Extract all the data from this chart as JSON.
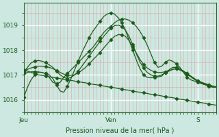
{
  "bg_color": "#cce8e0",
  "plot_bg_color": "#cce8e0",
  "grid_color_major": "#ffffff",
  "grid_color_minor": "#e8b8b8",
  "line_color": "#1a5c1a",
  "marker_color": "#1a5c1a",
  "xlabel": "Pression niveau de la mer( hPa )",
  "ylim": [
    1015.5,
    1019.9
  ],
  "yticks": [
    1016,
    1017,
    1018,
    1019
  ],
  "xtick_labels": [
    "Jeu",
    "Ven",
    "S"
  ],
  "xtick_positions": [
    0,
    24,
    48
  ],
  "total_hours": 54,
  "series": [
    [
      1016.1,
      1016.5,
      1016.8,
      1017.0,
      1017.1,
      1017.1,
      1017.05,
      1016.9,
      1016.7,
      1016.65,
      1016.7,
      1016.9,
      1017.05,
      1017.2,
      1017.35,
      1017.5,
      1017.65,
      1017.8,
      1017.95,
      1018.1,
      1018.3,
      1018.5,
      1018.7,
      1018.85,
      1018.95,
      1019.1,
      1019.2,
      1019.25,
      1019.25,
      1019.2,
      1019.1,
      1018.95,
      1018.75,
      1018.5,
      1018.2,
      1017.85,
      1017.5,
      1017.3,
      1017.35,
      1017.5,
      1017.6,
      1017.55,
      1017.45,
      1017.3,
      1017.1,
      1016.9,
      1016.8,
      1016.75,
      1016.7,
      1016.65,
      1016.6,
      1016.55,
      1016.5,
      1016.5
    ],
    [
      1017.05,
      1017.1,
      1017.12,
      1017.13,
      1017.12,
      1017.1,
      1017.05,
      1017.0,
      1016.85,
      1016.6,
      1016.35,
      1016.3,
      1016.55,
      1016.85,
      1017.2,
      1017.55,
      1017.9,
      1018.2,
      1018.5,
      1018.75,
      1018.95,
      1019.15,
      1019.35,
      1019.45,
      1019.5,
      1019.45,
      1019.3,
      1019.1,
      1018.8,
      1018.4,
      1018.0,
      1017.6,
      1017.25,
      1017.0,
      1016.9,
      1016.88,
      1016.9,
      1016.92,
      1016.95,
      1017.1,
      1017.2,
      1017.3,
      1017.3,
      1017.25,
      1017.15,
      1017.05,
      1016.95,
      1016.85,
      1016.75,
      1016.7,
      1016.65,
      1016.6,
      1016.55,
      1016.5
    ],
    [
      1017.1,
      1017.3,
      1017.48,
      1017.55,
      1017.58,
      1017.55,
      1017.5,
      1017.4,
      1017.3,
      1017.15,
      1017.0,
      1016.9,
      1016.85,
      1016.9,
      1017.0,
      1017.15,
      1017.35,
      1017.55,
      1017.75,
      1017.95,
      1018.15,
      1018.35,
      1018.55,
      1018.72,
      1018.88,
      1018.98,
      1019.0,
      1018.95,
      1018.8,
      1018.55,
      1018.22,
      1017.85,
      1017.52,
      1017.28,
      1017.1,
      1017.0,
      1016.95,
      1016.95,
      1017.0,
      1017.08,
      1017.15,
      1017.22,
      1017.25,
      1017.2,
      1017.12,
      1017.02,
      1016.92,
      1016.82,
      1016.72,
      1016.65,
      1016.6,
      1016.55,
      1016.52,
      1016.5
    ],
    [
      1017.15,
      1017.22,
      1017.28,
      1017.32,
      1017.35,
      1017.35,
      1017.33,
      1017.3,
      1017.25,
      1017.18,
      1017.1,
      1017.03,
      1016.98,
      1016.98,
      1017.0,
      1017.08,
      1017.18,
      1017.3,
      1017.45,
      1017.6,
      1017.75,
      1017.9,
      1018.08,
      1018.25,
      1018.42,
      1018.55,
      1018.62,
      1018.62,
      1018.55,
      1018.38,
      1018.15,
      1017.88,
      1017.62,
      1017.42,
      1017.28,
      1017.18,
      1017.12,
      1017.1,
      1017.1,
      1017.13,
      1017.17,
      1017.22,
      1017.25,
      1017.2,
      1017.15,
      1017.05,
      1016.95,
      1016.85,
      1016.75,
      1016.68,
      1016.62,
      1016.58,
      1016.55,
      1016.52
    ],
    [
      1017.2,
      1017.15,
      1017.1,
      1017.05,
      1017.0,
      1016.98,
      1016.95,
      1016.92,
      1016.9,
      1016.88,
      1016.85,
      1016.82,
      1016.8,
      1016.78,
      1016.75,
      1016.72,
      1016.7,
      1016.68,
      1016.65,
      1016.62,
      1016.6,
      1016.58,
      1016.55,
      1016.52,
      1016.5,
      1016.48,
      1016.45,
      1016.42,
      1016.4,
      1016.38,
      1016.35,
      1016.32,
      1016.3,
      1016.28,
      1016.25,
      1016.22,
      1016.2,
      1016.18,
      1016.15,
      1016.12,
      1016.1,
      1016.08,
      1016.05,
      1016.02,
      1016.0,
      1015.98,
      1015.95,
      1015.92,
      1015.9,
      1015.88,
      1015.85,
      1015.82,
      1015.8,
      1015.78
    ]
  ]
}
